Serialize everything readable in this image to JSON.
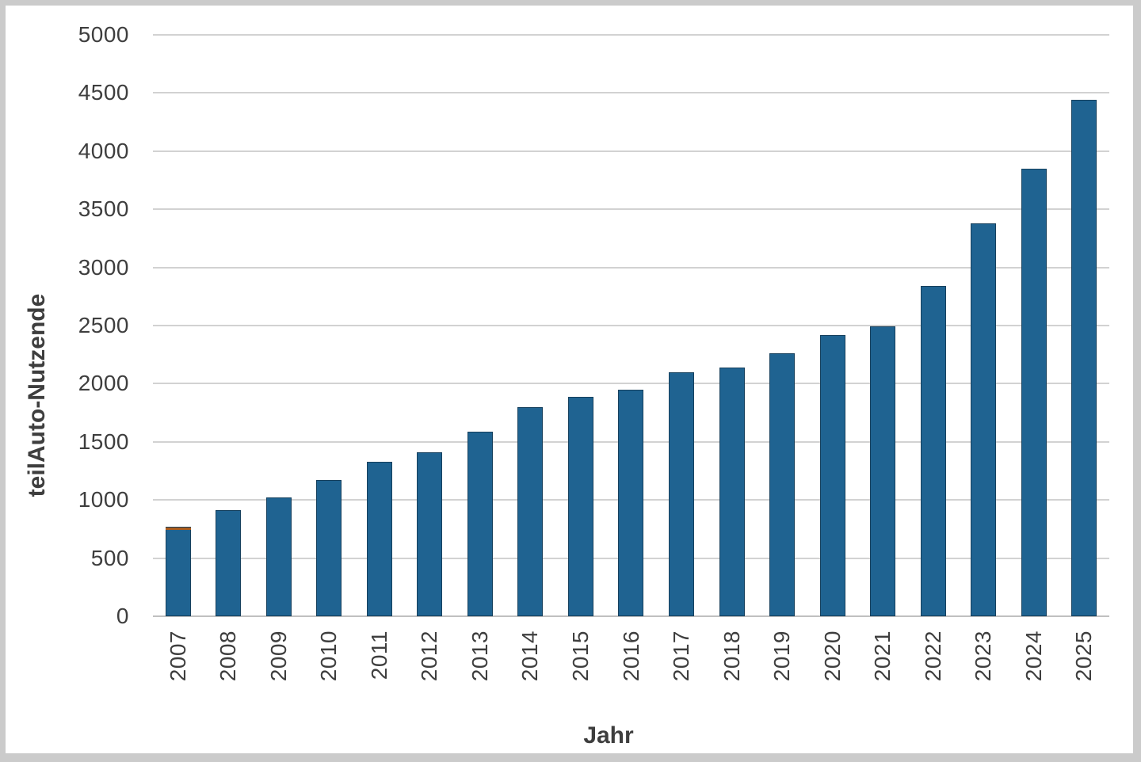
{
  "chart_data": {
    "type": "bar",
    "title": "",
    "xlabel": "Jahr",
    "ylabel": "teilAuto-Nutzende",
    "categories": [
      "2007",
      "2008",
      "2009",
      "2010",
      "2011",
      "2012",
      "2013",
      "2014",
      "2015",
      "2016",
      "2017",
      "2018",
      "2019",
      "2020",
      "2021",
      "2022",
      "2023",
      "2024",
      "2025"
    ],
    "values": [
      770,
      915,
      1020,
      1170,
      1330,
      1410,
      1590,
      1800,
      1890,
      1950,
      2100,
      2140,
      2260,
      2420,
      2490,
      2840,
      3380,
      3850,
      4440
    ],
    "cap_segment": {
      "category": "2007",
      "value": 20
    },
    "ylim": [
      0,
      5000
    ],
    "yticks": [
      0,
      500,
      1000,
      1500,
      2000,
      2500,
      3000,
      3500,
      4000,
      4500,
      5000
    ],
    "grid": "horizontal",
    "legend": "none",
    "colors": {
      "bar": "#1F6391",
      "bar_border": "#16405D",
      "cap": "#AA5B1D",
      "grid": "#D2D2D2",
      "baseline": "#C0C0C0",
      "text": "#3E3E3E",
      "frame": "#CBCBCB"
    }
  }
}
